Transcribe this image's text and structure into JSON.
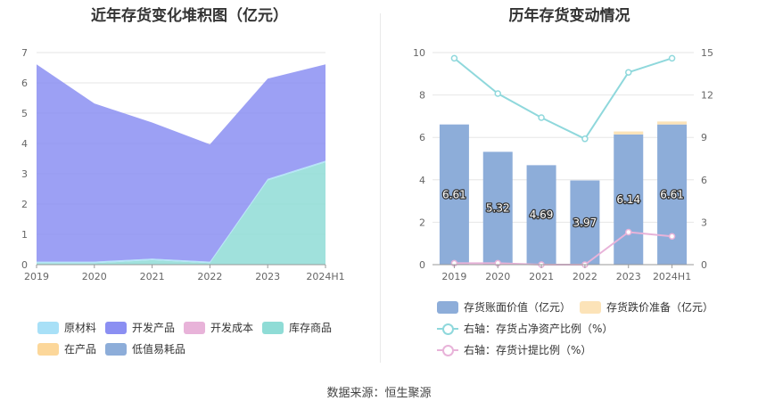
{
  "left_title": "近年存货变化堆积图（亿元）",
  "right_title": "历年存货变动情况",
  "source": "数据来源：恒生聚源",
  "chart_data": [
    {
      "type": "area",
      "stacked": true,
      "title": "近年存货变化堆积图（亿元）",
      "categories": [
        "2019",
        "2020",
        "2021",
        "2022",
        "2023",
        "2024H1"
      ],
      "ylim": [
        0,
        7
      ],
      "yticks": [
        "0",
        "1",
        "2",
        "3",
        "4",
        "5",
        "6",
        "7"
      ],
      "series": [
        {
          "name": "原材料",
          "color": "#a8e0f7",
          "values": [
            0.05,
            0.05,
            0.05,
            0.05,
            0.05,
            0.05
          ]
        },
        {
          "name": "开发产品",
          "color": "#8b8ff2",
          "values": [
            6.51,
            5.22,
            4.49,
            3.87,
            3.31,
            3.18
          ]
        },
        {
          "name": "开发成本",
          "color": "#e8b3d9",
          "values": [
            0,
            0,
            0,
            0,
            0,
            0
          ]
        },
        {
          "name": "库存商品",
          "color": "#8fdcd6",
          "values": [
            0.05,
            0.05,
            0.15,
            0.05,
            2.78,
            3.38
          ]
        },
        {
          "name": "在产品",
          "color": "#fcd79a",
          "values": [
            0,
            0,
            0,
            0,
            0,
            0
          ]
        },
        {
          "name": "低值易耗品",
          "color": "#8dadd9",
          "values": [
            0,
            0,
            0,
            0,
            0,
            0
          ]
        }
      ],
      "draw_order": [
        "库存商品",
        "原材料",
        "开发成本",
        "在产品",
        "低值易耗品",
        "开发产品"
      ],
      "legend": [
        "原材料",
        "开发产品",
        "开发成本",
        "库存商品",
        "在产品",
        "低值易耗品"
      ]
    },
    {
      "type": "bar+line",
      "title": "历年存货变动情况",
      "categories": [
        "2019",
        "2020",
        "2021",
        "2022",
        "2023",
        "2024H1"
      ],
      "ylim_left": [
        0,
        10
      ],
      "yticks_left": [
        "0",
        "2",
        "4",
        "6",
        "8",
        "10"
      ],
      "ylim_right": [
        0,
        15
      ],
      "yticks_right": [
        "0",
        "3",
        "6",
        "9",
        "12",
        "15"
      ],
      "bars": [
        {
          "name": "存货账面价值（亿元）",
          "color": "#8dadd9",
          "values": [
            6.61,
            5.32,
            4.69,
            3.97,
            6.14,
            6.61
          ],
          "labels": [
            "6.61",
            "5.32",
            "4.69",
            "3.97",
            "6.14",
            "6.61"
          ]
        },
        {
          "name": "存货跌价准备（亿元）",
          "color": "#fce3b8",
          "values": [
            0,
            0,
            0,
            0,
            0.14,
            0.14
          ]
        }
      ],
      "lines": [
        {
          "name": "右轴：存货占净资产比例（%）",
          "color": "#8fd8dc",
          "values": [
            14.6,
            12.1,
            10.4,
            8.9,
            13.6,
            14.6
          ]
        },
        {
          "name": "右轴：存货计提比例（%）",
          "color": "#e8b3d9",
          "values": [
            0.1,
            0.1,
            0.0,
            0.0,
            2.3,
            2.0
          ]
        }
      ]
    }
  ]
}
